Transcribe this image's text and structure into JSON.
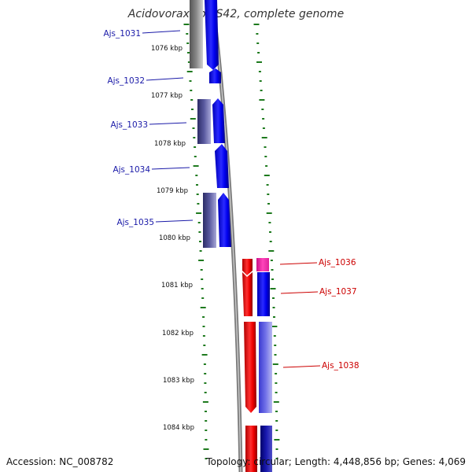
{
  "title": "Acidovorax sp. JS42, complete genome",
  "footer": {
    "accession": "Accession: NC_008782",
    "summary": "Topology: circular; Length: 4,448,856 bp; Genes: 4,069"
  },
  "colors": {
    "forward": "#0000ee",
    "reverse_dark": "#44448a",
    "highlight": "#ee0000",
    "magenta": "#ee22aa",
    "tick": "#1e7a1e",
    "label_blue": "#1a1aa8",
    "label_red": "#cc0000"
  },
  "kbp_ticks": [
    "1076 kbp",
    "1077 kbp",
    "1078 kbp",
    "1079 kbp",
    "1080 kbp",
    "1081 kbp",
    "1082 kbp",
    "1083 kbp",
    "1084 kbp"
  ],
  "genes": [
    {
      "name": "Ajs_1031",
      "highlight": false
    },
    {
      "name": "Ajs_1032",
      "highlight": false
    },
    {
      "name": "Ajs_1033",
      "highlight": false
    },
    {
      "name": "Ajs_1034",
      "highlight": false
    },
    {
      "name": "Ajs_1035",
      "highlight": false
    },
    {
      "name": "Ajs_1036",
      "highlight": true
    },
    {
      "name": "Ajs_1037",
      "highlight": true
    },
    {
      "name": "Ajs_1038",
      "highlight": true
    }
  ]
}
